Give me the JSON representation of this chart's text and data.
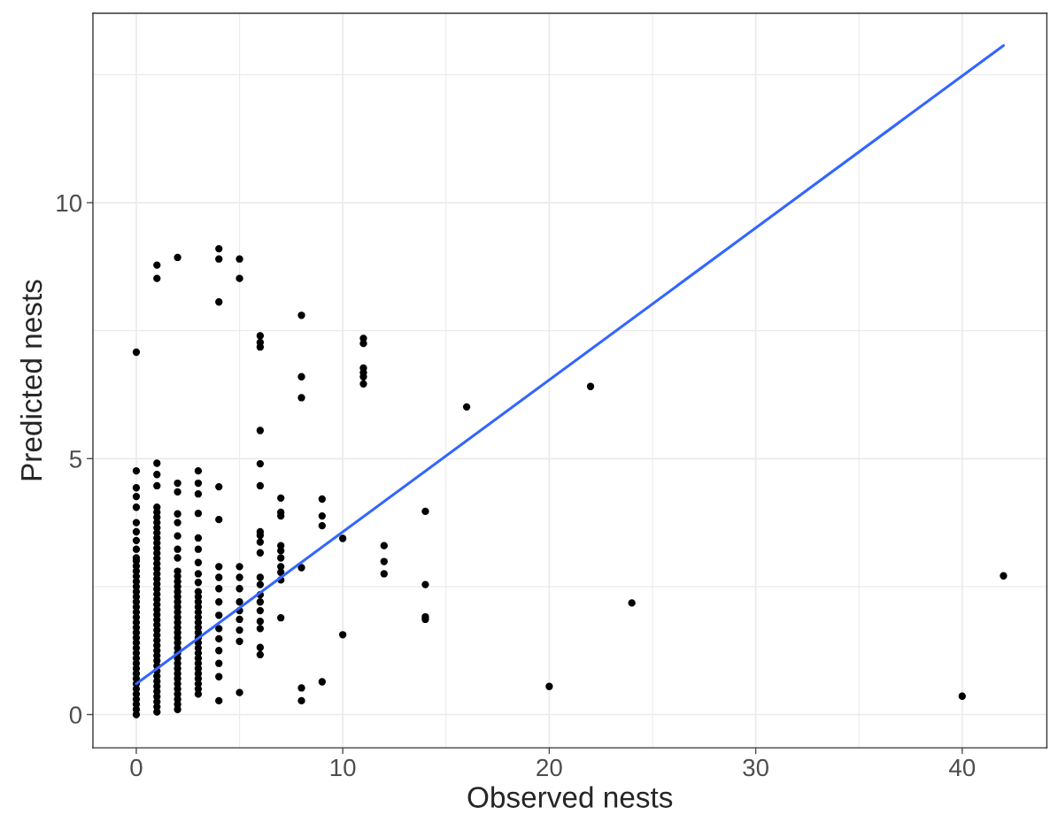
{
  "chart_data": {
    "type": "scatter",
    "xlabel": "Observed nests",
    "ylabel": "Predicted nests",
    "xlim": [
      -2.1,
      44.1
    ],
    "ylim": [
      -0.65,
      13.7
    ],
    "xticks": [
      0,
      10,
      20,
      30,
      40
    ],
    "yticks": [
      0,
      5,
      10
    ],
    "grid": true,
    "marker": "circle",
    "series": [
      {
        "color": "#000000",
        "x": [
          0,
          0,
          0,
          0,
          0,
          0,
          0,
          0,
          0,
          0,
          0,
          0,
          0,
          0,
          0,
          0,
          0,
          0,
          0,
          0,
          0,
          0,
          0,
          0,
          0,
          0,
          0,
          0,
          0,
          0,
          0,
          0,
          0,
          0,
          0,
          0,
          0,
          0,
          0,
          0,
          0,
          1,
          1,
          1,
          1,
          1,
          1,
          1,
          1,
          1,
          1,
          1,
          1,
          1,
          1,
          1,
          1,
          1,
          1,
          1,
          1,
          1,
          1,
          1,
          1,
          1,
          1,
          1,
          1,
          1,
          1,
          1,
          1,
          1,
          1,
          1,
          1,
          1,
          1,
          1,
          1,
          1,
          1,
          1,
          1,
          1,
          1,
          2,
          2,
          2,
          2,
          2,
          2,
          2,
          2,
          2,
          2,
          2,
          2,
          2,
          2,
          2,
          2,
          2,
          2,
          2,
          2,
          2,
          2,
          2,
          2,
          2,
          2,
          2,
          2,
          2,
          2,
          2,
          2,
          2,
          2,
          2,
          2,
          3,
          3,
          3,
          3,
          3,
          3,
          3,
          3,
          3,
          3,
          3,
          3,
          3,
          3,
          3,
          3,
          3,
          3,
          3,
          3,
          3,
          3,
          3,
          3,
          3,
          3,
          3,
          3,
          3,
          3,
          4,
          4,
          4,
          4,
          4,
          4,
          4,
          4,
          4,
          4,
          4,
          4,
          4,
          4,
          4,
          4,
          5,
          5,
          5,
          5,
          5,
          5,
          5,
          5,
          5,
          5,
          5,
          6,
          6,
          6,
          6,
          6,
          6,
          6,
          6,
          6,
          6,
          6,
          6,
          6,
          6,
          6,
          6,
          6,
          6,
          6,
          7,
          7,
          7,
          7,
          7,
          7,
          7,
          7,
          7,
          7,
          8,
          8,
          8,
          8,
          8,
          8,
          9,
          9,
          9,
          9,
          10,
          10,
          11,
          11,
          11,
          11,
          11,
          11,
          12,
          12,
          12,
          14,
          14,
          14,
          14,
          16,
          20,
          22,
          24,
          40,
          42
        ],
        "values": [
          7.08,
          4.76,
          4.43,
          4.26,
          4.05,
          3.75,
          3.57,
          3.4,
          3.23,
          3.06,
          3.0,
          2.9,
          2.8,
          2.7,
          2.6,
          2.5,
          2.4,
          2.3,
          2.2,
          2.1,
          2.0,
          1.9,
          1.8,
          1.7,
          1.6,
          1.5,
          1.4,
          1.3,
          1.2,
          1.1,
          1.0,
          0.9,
          0.8,
          0.7,
          0.6,
          0.5,
          0.4,
          0.3,
          0.2,
          0.1,
          0.0,
          8.78,
          8.52,
          4.91,
          4.69,
          4.47,
          4.05,
          3.95,
          3.85,
          3.75,
          3.65,
          3.55,
          3.45,
          3.35,
          3.25,
          3.15,
          3.05,
          2.95,
          2.85,
          2.75,
          2.65,
          2.55,
          2.45,
          2.35,
          2.25,
          2.15,
          2.05,
          1.95,
          1.85,
          1.75,
          1.65,
          1.55,
          1.45,
          1.35,
          1.25,
          1.15,
          1.05,
          0.95,
          0.85,
          0.75,
          0.65,
          0.55,
          0.45,
          0.35,
          0.25,
          0.15,
          0.05,
          8.93,
          4.52,
          4.35,
          3.92,
          3.75,
          3.49,
          3.23,
          3.06,
          2.8,
          2.7,
          2.6,
          2.5,
          2.4,
          2.3,
          2.2,
          2.1,
          2.0,
          1.9,
          1.8,
          1.7,
          1.6,
          1.5,
          1.4,
          1.3,
          1.2,
          1.1,
          1.0,
          0.9,
          0.8,
          0.7,
          0.6,
          0.5,
          0.4,
          0.3,
          0.2,
          0.1,
          4.76,
          4.52,
          4.31,
          3.93,
          3.45,
          3.23,
          2.97,
          2.75,
          2.58,
          2.4,
          2.3,
          2.2,
          2.1,
          2.0,
          1.9,
          1.8,
          1.7,
          1.6,
          1.5,
          1.4,
          1.3,
          1.2,
          1.1,
          1.0,
          0.9,
          0.8,
          0.7,
          0.6,
          0.5,
          0.4,
          9.1,
          8.9,
          8.06,
          4.45,
          3.81,
          2.89,
          2.68,
          2.46,
          2.2,
          1.94,
          1.68,
          1.48,
          1.25,
          1.0,
          0.74,
          0.27,
          8.9,
          8.52,
          2.89,
          2.68,
          2.46,
          2.2,
          2.03,
          1.86,
          1.65,
          1.43,
          0.43,
          7.4,
          7.27,
          7.18,
          5.55,
          4.9,
          4.47,
          3.57,
          3.5,
          3.37,
          3.16,
          2.68,
          2.54,
          2.34,
          2.2,
          2.03,
          1.82,
          1.68,
          1.31,
          1.17,
          4.23,
          3.95,
          3.88,
          3.3,
          3.2,
          3.06,
          2.89,
          2.78,
          2.63,
          1.89,
          7.8,
          6.6,
          6.19,
          2.87,
          0.52,
          0.27,
          4.21,
          3.88,
          3.69,
          0.64,
          3.44,
          1.56,
          7.35,
          7.25,
          6.77,
          6.68,
          6.6,
          6.46,
          3.3,
          2.99,
          2.75,
          3.97,
          2.54,
          1.91,
          1.86,
          6.01,
          0.55,
          6.41,
          2.18,
          0.36,
          2.71
        ]
      },
      {
        "type": "line",
        "color": "#3366ff",
        "marker": "none",
        "x": [
          0,
          42
        ],
        "values": [
          0.6,
          13.07
        ]
      }
    ]
  }
}
